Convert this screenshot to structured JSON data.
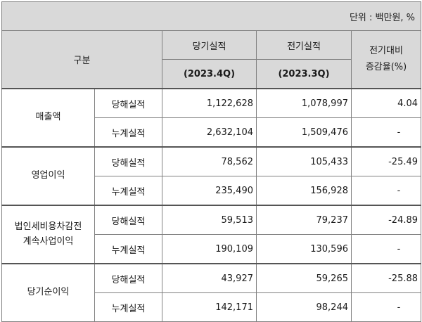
{
  "unit_text": "단위 : 백만원, %",
  "header": {
    "category": "구분",
    "current_label": "당기실적",
    "current_period": "(2023.4Q)",
    "previous_label": "전기실적",
    "previous_period": "(2023.3Q)",
    "change_label_1": "전기대비",
    "change_label_2": "증감율(%)"
  },
  "groups": [
    {
      "label_1": "매출액",
      "label_2": "",
      "rows": [
        {
          "sub": "당해실적",
          "current": "1,122,628",
          "previous": "1,078,997",
          "change": "4.04"
        },
        {
          "sub": "누계실적",
          "current": "2,632,104",
          "previous": "1,509,476",
          "change": "-"
        }
      ]
    },
    {
      "label_1": "영업이익",
      "label_2": "",
      "rows": [
        {
          "sub": "당해실적",
          "current": "78,562",
          "previous": "105,433",
          "change": "-25.49"
        },
        {
          "sub": "누계실적",
          "current": "235,490",
          "previous": "156,928",
          "change": "-"
        }
      ]
    },
    {
      "label_1": "법인세비용차감전",
      "label_2": "계속사업이익",
      "rows": [
        {
          "sub": "당해실적",
          "current": "59,513",
          "previous": "79,237",
          "change": "-24.89"
        },
        {
          "sub": "누계실적",
          "current": "190,109",
          "previous": "130,596",
          "change": "-"
        }
      ]
    },
    {
      "label_1": "당기순이익",
      "label_2": "",
      "rows": [
        {
          "sub": "당해실적",
          "current": "43,927",
          "previous": "59,265",
          "change": "-25.88"
        },
        {
          "sub": "누계실적",
          "current": "142,171",
          "previous": "98,244",
          "change": "-"
        }
      ]
    }
  ]
}
